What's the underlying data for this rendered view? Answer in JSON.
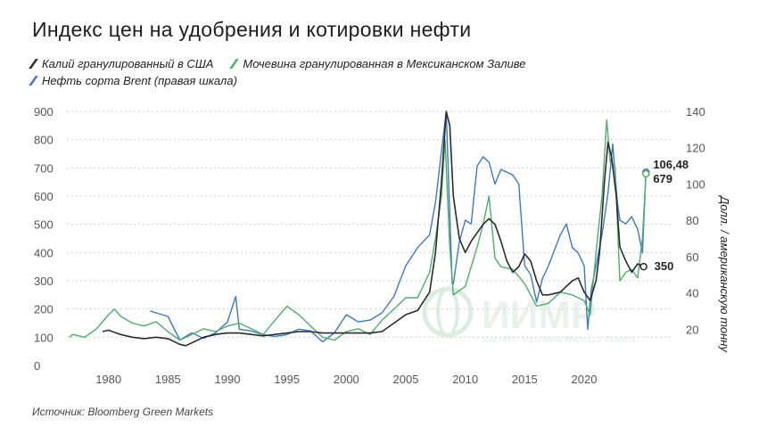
{
  "header": {
    "title": "Индекс цен на удобрения и котировки нефти"
  },
  "legend": {
    "items": [
      {
        "label": "Калий гранулированный в США",
        "color": "#2b2b2b"
      },
      {
        "label": "Мочевина гранулированная в Мексиканском Заливе",
        "color": "#4caf6a"
      },
      {
        "label": "Нефть сорта Brent (правая шкала)",
        "color": "#3b78c7"
      }
    ]
  },
  "footer": {
    "source": "Источник: Bloomberg Green Markets"
  },
  "watermark": {
    "text": "ИИМР",
    "subtitle": "Институт Изучения Мировых Рынков"
  },
  "colors": {
    "potash": "#2b2b2b",
    "urea": "#4caf6a",
    "brent": "#3b78c7",
    "grid": "#cfcfcf"
  },
  "chart_data": {
    "type": "line",
    "title": "Индекс цен на удобрения и котировки нефти",
    "xlabel": "",
    "ylabel": "",
    "y2label": "Долл. / американскую тонну",
    "xlim": [
      1976.5,
      2027.5
    ],
    "ylim": [
      0,
      900
    ],
    "y2lim": [
      0,
      140
    ],
    "x_ticks": [
      1980,
      1985,
      1990,
      1995,
      2000,
      2005,
      2010,
      2015,
      2020
    ],
    "y_ticks": [
      0,
      100,
      200,
      300,
      400,
      500,
      600,
      700,
      800,
      900
    ],
    "y2_ticks": [
      20,
      40,
      60,
      80,
      100,
      120,
      140
    ],
    "grid": true,
    "legend_position": "top-left",
    "annotations": [
      {
        "text": "106,48",
        "series": "brent",
        "x": 2025.2,
        "y": 106.48,
        "axis": "right"
      },
      {
        "text": "679",
        "series": "urea",
        "x": 2025.2,
        "y": 679,
        "axis": "left"
      },
      {
        "text": "350",
        "series": "potash",
        "x": 2025.2,
        "y": 350,
        "axis": "left"
      }
    ],
    "series": [
      {
        "name": "Калий гранулированный в США",
        "key": "potash",
        "axis": "left",
        "points": [
          [
            1979.5,
            120
          ],
          [
            1980,
            125
          ],
          [
            1981,
            110
          ],
          [
            1982,
            100
          ],
          [
            1983,
            95
          ],
          [
            1984,
            100
          ],
          [
            1985,
            95
          ],
          [
            1986,
            75
          ],
          [
            1986.5,
            70
          ],
          [
            1987,
            80
          ],
          [
            1988,
            100
          ],
          [
            1989,
            110
          ],
          [
            1990,
            115
          ],
          [
            1991,
            115
          ],
          [
            1992,
            110
          ],
          [
            1993,
            105
          ],
          [
            1994,
            110
          ],
          [
            1995,
            115
          ],
          [
            1996,
            120
          ],
          [
            1997,
            120
          ],
          [
            1998,
            115
          ],
          [
            1999,
            115
          ],
          [
            2000,
            115
          ],
          [
            2001,
            115
          ],
          [
            2002,
            115
          ],
          [
            2003,
            120
          ],
          [
            2004,
            150
          ],
          [
            2005,
            180
          ],
          [
            2006,
            195
          ],
          [
            2007,
            260
          ],
          [
            2007.5,
            400
          ],
          [
            2008,
            650
          ],
          [
            2008.4,
            900
          ],
          [
            2008.7,
            850
          ],
          [
            2009,
            600
          ],
          [
            2009.5,
            450
          ],
          [
            2010,
            400
          ],
          [
            2010.5,
            440
          ],
          [
            2011,
            470
          ],
          [
            2011.5,
            500
          ],
          [
            2012,
            520
          ],
          [
            2012.5,
            500
          ],
          [
            2013,
            440
          ],
          [
            2013.5,
            370
          ],
          [
            2014,
            330
          ],
          [
            2014.5,
            350
          ],
          [
            2015,
            395
          ],
          [
            2015.5,
            370
          ],
          [
            2016,
            300
          ],
          [
            2016.5,
            250
          ],
          [
            2017,
            250
          ],
          [
            2018,
            260
          ],
          [
            2019,
            300
          ],
          [
            2019.5,
            310
          ],
          [
            2020,
            260
          ],
          [
            2020.5,
            230
          ],
          [
            2021,
            300
          ],
          [
            2021.3,
            400
          ],
          [
            2021.7,
            650
          ],
          [
            2022,
            790
          ],
          [
            2022.3,
            740
          ],
          [
            2022.7,
            600
          ],
          [
            2023,
            420
          ],
          [
            2023.5,
            370
          ],
          [
            2024,
            330
          ],
          [
            2024.5,
            360
          ],
          [
            2025,
            350
          ]
        ]
      },
      {
        "name": "Мочевина гранулированная в Мексиканском Заливе",
        "key": "urea",
        "axis": "left",
        "points": [
          [
            1976.7,
            100
          ],
          [
            1977,
            110
          ],
          [
            1978,
            100
          ],
          [
            1979,
            130
          ],
          [
            1980,
            180
          ],
          [
            1980.5,
            200
          ],
          [
            1981,
            175
          ],
          [
            1982,
            150
          ],
          [
            1983,
            140
          ],
          [
            1984,
            155
          ],
          [
            1985,
            120
          ],
          [
            1986,
            90
          ],
          [
            1987,
            110
          ],
          [
            1988,
            130
          ],
          [
            1989,
            120
          ],
          [
            1990,
            140
          ],
          [
            1991,
            150
          ],
          [
            1992,
            130
          ],
          [
            1993,
            110
          ],
          [
            1994,
            160
          ],
          [
            1995,
            210
          ],
          [
            1996,
            180
          ],
          [
            1997,
            140
          ],
          [
            1998,
            100
          ],
          [
            1999,
            90
          ],
          [
            2000,
            120
          ],
          [
            2001,
            130
          ],
          [
            2002,
            110
          ],
          [
            2003,
            160
          ],
          [
            2004,
            200
          ],
          [
            2005,
            240
          ],
          [
            2006,
            240
          ],
          [
            2007,
            330
          ],
          [
            2007.5,
            450
          ],
          [
            2008,
            600
          ],
          [
            2008.3,
            800
          ],
          [
            2008.7,
            420
          ],
          [
            2009,
            250
          ],
          [
            2010,
            280
          ],
          [
            2011,
            420
          ],
          [
            2011.5,
            500
          ],
          [
            2012,
            600
          ],
          [
            2012.5,
            380
          ],
          [
            2013,
            350
          ],
          [
            2014,
            340
          ],
          [
            2015,
            290
          ],
          [
            2016,
            210
          ],
          [
            2017,
            220
          ],
          [
            2018,
            260
          ],
          [
            2019,
            250
          ],
          [
            2020,
            230
          ],
          [
            2020.5,
            180
          ],
          [
            2021,
            400
          ],
          [
            2021.5,
            600
          ],
          [
            2021.9,
            870
          ],
          [
            2022.2,
            720
          ],
          [
            2022.6,
            700
          ],
          [
            2023,
            300
          ],
          [
            2023.5,
            330
          ],
          [
            2024,
            340
          ],
          [
            2024.5,
            310
          ],
          [
            2024.9,
            450
          ],
          [
            2025.2,
            679
          ]
        ]
      },
      {
        "name": "Нефть сорта Brent (правая шкала)",
        "key": "brent",
        "axis": "right",
        "points": [
          [
            1983.5,
            30
          ],
          [
            1984,
            29
          ],
          [
            1985,
            27
          ],
          [
            1986,
            14
          ],
          [
            1987,
            18
          ],
          [
            1988,
            15
          ],
          [
            1989,
            18
          ],
          [
            1990,
            24
          ],
          [
            1990.7,
            38
          ],
          [
            1991,
            20
          ],
          [
            1992,
            19
          ],
          [
            1993,
            17
          ],
          [
            1994,
            16
          ],
          [
            1995,
            17
          ],
          [
            1996,
            20
          ],
          [
            1997,
            19
          ],
          [
            1998,
            13
          ],
          [
            1999,
            18
          ],
          [
            2000,
            28
          ],
          [
            2001,
            24
          ],
          [
            2002,
            25
          ],
          [
            2003,
            29
          ],
          [
            2004,
            38
          ],
          [
            2005,
            55
          ],
          [
            2006,
            65
          ],
          [
            2007,
            72
          ],
          [
            2007.5,
            90
          ],
          [
            2008.4,
            140
          ],
          [
            2008.9,
            45
          ],
          [
            2009,
            45
          ],
          [
            2009.5,
            68
          ],
          [
            2010,
            80
          ],
          [
            2010.5,
            78
          ],
          [
            2011,
            110
          ],
          [
            2011.5,
            115
          ],
          [
            2012,
            112
          ],
          [
            2012.5,
            100
          ],
          [
            2013,
            108
          ],
          [
            2014,
            105
          ],
          [
            2014.5,
            100
          ],
          [
            2015,
            55
          ],
          [
            2015.5,
            50
          ],
          [
            2016,
            35
          ],
          [
            2016.5,
            48
          ],
          [
            2017,
            55
          ],
          [
            2018,
            72
          ],
          [
            2018.5,
            78
          ],
          [
            2019,
            65
          ],
          [
            2019.5,
            62
          ],
          [
            2020,
            55
          ],
          [
            2020.3,
            20
          ],
          [
            2020.6,
            42
          ],
          [
            2021,
            55
          ],
          [
            2021.5,
            72
          ],
          [
            2022,
            95
          ],
          [
            2022.4,
            122
          ],
          [
            2022.8,
            90
          ],
          [
            2023,
            80
          ],
          [
            2023.5,
            78
          ],
          [
            2024,
            82
          ],
          [
            2024.5,
            75
          ],
          [
            2024.9,
            62
          ],
          [
            2025.2,
            106.48
          ]
        ]
      }
    ]
  }
}
